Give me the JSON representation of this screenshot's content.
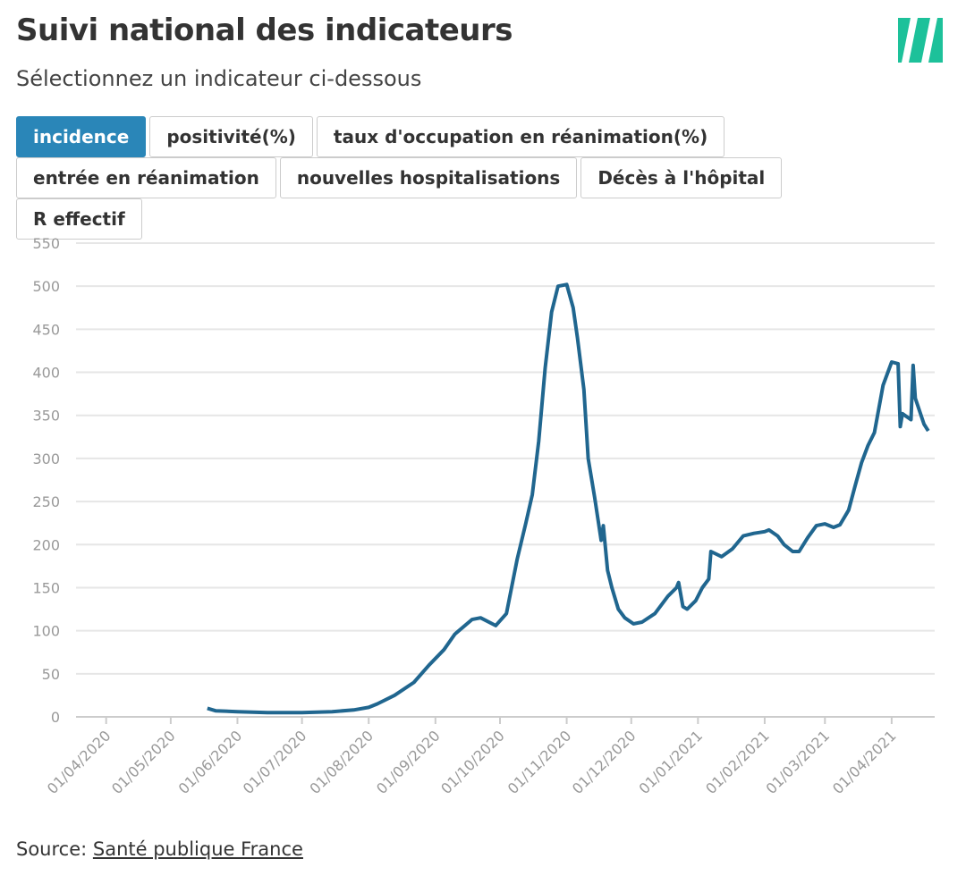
{
  "header": {
    "title": "Suivi national des indicateurs",
    "subtitle": "Sélectionnez un indicateur ci-dessous"
  },
  "buttons": [
    "incidence",
    "positivité(%)",
    "taux d'occupation en réanimation(%)",
    "entrée en réanimation",
    "nouvelles hospitalisations",
    "Décès à l'hôpital",
    "R effectif"
  ],
  "active_button": 0,
  "chart_data": {
    "type": "line",
    "series": [
      {
        "name": "incidence",
        "color": "#20668f",
        "x": [
          "2020-05-18",
          "2020-05-22",
          "2020-06-01",
          "2020-06-15",
          "2020-07-01",
          "2020-07-15",
          "2020-07-25",
          "2020-08-01",
          "2020-08-05",
          "2020-08-13",
          "2020-08-22",
          "2020-08-29",
          "2020-09-05",
          "2020-09-10",
          "2020-09-18",
          "2020-09-22",
          "2020-09-29",
          "2020-10-04",
          "2020-10-09",
          "2020-10-13",
          "2020-10-16",
          "2020-10-19",
          "2020-10-22",
          "2020-10-25",
          "2020-10-28",
          "2020-11-01",
          "2020-11-04",
          "2020-11-06",
          "2020-11-09",
          "2020-11-11",
          "2020-11-14",
          "2020-11-17",
          "2020-11-18",
          "2020-11-20",
          "2020-11-22",
          "2020-11-25",
          "2020-11-28",
          "2020-12-02",
          "2020-12-06",
          "2020-12-12",
          "2020-12-18",
          "2020-12-22",
          "2020-12-23",
          "2020-12-25",
          "2020-12-27",
          "2020-12-31",
          "2021-01-03",
          "2021-01-06",
          "2021-01-07",
          "2021-01-12",
          "2021-01-17",
          "2021-01-22",
          "2021-01-27",
          "2021-02-01",
          "2021-02-03",
          "2021-02-07",
          "2021-02-10",
          "2021-02-14",
          "2021-02-17",
          "2021-02-21",
          "2021-02-25",
          "2021-03-01",
          "2021-03-05",
          "2021-03-08",
          "2021-03-12",
          "2021-03-15",
          "2021-03-18",
          "2021-03-21",
          "2021-03-24",
          "2021-03-28",
          "2021-04-01",
          "2021-04-04",
          "2021-04-05",
          "2021-04-06",
          "2021-04-10",
          "2021-04-11",
          "2021-04-12",
          "2021-04-16",
          "2021-04-18"
        ],
        "values": [
          10,
          7,
          6,
          5,
          5,
          6,
          8,
          11,
          15,
          25,
          40,
          60,
          78,
          96,
          113,
          115,
          106,
          120,
          183,
          225,
          258,
          320,
          405,
          470,
          500,
          502,
          475,
          440,
          380,
          300,
          255,
          205,
          222,
          170,
          150,
          125,
          115,
          108,
          110,
          120,
          140,
          150,
          156,
          128,
          125,
          135,
          150,
          160,
          192,
          186,
          195,
          210,
          213,
          215,
          217,
          210,
          200,
          192,
          192,
          208,
          222,
          224,
          220,
          223,
          240,
          268,
          295,
          315,
          330,
          385,
          412,
          410,
          337,
          352,
          345,
          408,
          370,
          340,
          332
        ]
      }
    ],
    "xlim": [
      "2020-03-18",
      "2021-04-21"
    ],
    "xticks": [
      {
        "value": "2020-04-01",
        "label": "01/04/2020"
      },
      {
        "value": "2020-05-01",
        "label": "01/05/2020"
      },
      {
        "value": "2020-06-01",
        "label": "01/06/2020"
      },
      {
        "value": "2020-07-01",
        "label": "01/07/2020"
      },
      {
        "value": "2020-08-01",
        "label": "01/08/2020"
      },
      {
        "value": "2020-09-01",
        "label": "01/09/2020"
      },
      {
        "value": "2020-10-01",
        "label": "01/10/2020"
      },
      {
        "value": "2020-11-01",
        "label": "01/11/2020"
      },
      {
        "value": "2020-12-01",
        "label": "01/12/2020"
      },
      {
        "value": "2021-01-01",
        "label": "01/01/2021"
      },
      {
        "value": "2021-02-01",
        "label": "01/02/2021"
      },
      {
        "value": "2021-03-01",
        "label": "01/03/2021"
      },
      {
        "value": "2021-04-01",
        "label": "01/04/2021"
      }
    ],
    "ylim": [
      0,
      550
    ],
    "yticks": [
      0,
      50,
      100,
      150,
      200,
      250,
      300,
      350,
      400,
      450,
      500,
      550
    ],
    "grid": true
  },
  "footer": {
    "label": "Source:",
    "link": "Santé publique France"
  }
}
